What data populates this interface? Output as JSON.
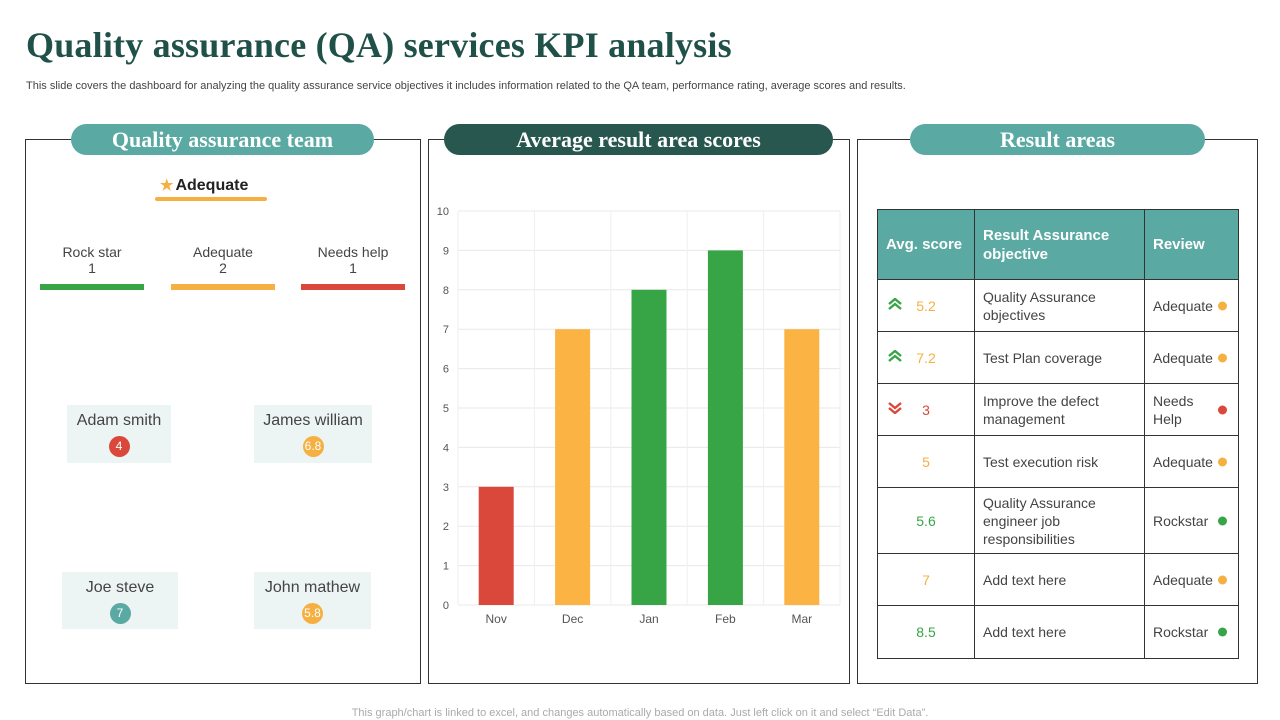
{
  "header": {
    "title": "Quality assurance (QA) services KPI analysis",
    "subtitle": "This slide covers the dashboard for analyzing the quality assurance service objectives it includes information related to the QA team, performance rating, average scores and results."
  },
  "team_panel": {
    "title": "Quality assurance team",
    "legend_label": "Adequate",
    "categories": [
      {
        "label": "Rock star",
        "count": "1",
        "color": "#37a546"
      },
      {
        "label": "Adequate",
        "count": "2",
        "color": "#f5b041"
      },
      {
        "label": "Needs help",
        "count": "1",
        "color": "#d9483b"
      }
    ],
    "members": [
      {
        "name": "Adam smith",
        "score": "4",
        "color": "#d9483b"
      },
      {
        "name": "James william",
        "score": "6.8",
        "color": "#f5b041"
      },
      {
        "name": "Joe steve",
        "score": "7",
        "color": "#5aa9a3"
      },
      {
        "name": "John mathew",
        "score": "5.8",
        "color": "#f5b041"
      }
    ]
  },
  "chart_panel": {
    "title": "Average result area scores"
  },
  "chart_data": {
    "type": "bar",
    "title": "Average result area scores",
    "categories": [
      "Nov",
      "Dec",
      "Jan",
      "Feb",
      "Mar"
    ],
    "values": [
      3,
      7,
      8,
      9,
      7
    ],
    "colors": [
      "#d9483b",
      "#fbb444",
      "#37a546",
      "#37a546",
      "#fbb444"
    ],
    "yticks": [
      "0",
      "1",
      "2",
      "3",
      "4",
      "5",
      "6",
      "7",
      "8",
      "9",
      "10"
    ],
    "ylim": [
      0,
      10
    ],
    "grid": true
  },
  "results_panel": {
    "title": "Result areas",
    "headers": {
      "score": "Avg. score",
      "objective": "Result Assurance objective",
      "review": "Review"
    },
    "rows": [
      {
        "score": "5.2",
        "score_color": "#f5b041",
        "trend": "up",
        "trend_color": "#37a546",
        "objective": "Quality Assurance objectives",
        "review": "Adequate",
        "review_color": "#f5b041"
      },
      {
        "score": "7.2",
        "score_color": "#f5b041",
        "trend": "up",
        "trend_color": "#37a546",
        "objective": "Test Plan coverage",
        "review": "Adequate",
        "review_color": "#f5b041"
      },
      {
        "score": "3",
        "score_color": "#d9483b",
        "trend": "down",
        "trend_color": "#d9483b",
        "objective": "Improve the defect management",
        "review": "Needs Help",
        "review_color": "#d9483b"
      },
      {
        "score": "5",
        "score_color": "#f5b041",
        "trend": "",
        "trend_color": "",
        "objective": "Test execution risk",
        "review": "Adequate",
        "review_color": "#f5b041"
      },
      {
        "score": "5.6",
        "score_color": "#37a546",
        "trend": "",
        "trend_color": "",
        "objective": "Quality Assurance engineer job responsibilities",
        "review": "Rockstar",
        "review_color": "#37a546"
      },
      {
        "score": "7",
        "score_color": "#f5b041",
        "trend": "",
        "trend_color": "",
        "objective": "Add text here",
        "review": "Adequate",
        "review_color": "#f5b041"
      },
      {
        "score": "8.5",
        "score_color": "#37a546",
        "trend": "",
        "trend_color": "",
        "objective": "Add text here",
        "review": "Rockstar",
        "review_color": "#37a546"
      }
    ]
  },
  "footer": {
    "note": "This graph/chart is linked to excel, and changes automatically based on data. Just left click on it and select “Edit Data”."
  }
}
